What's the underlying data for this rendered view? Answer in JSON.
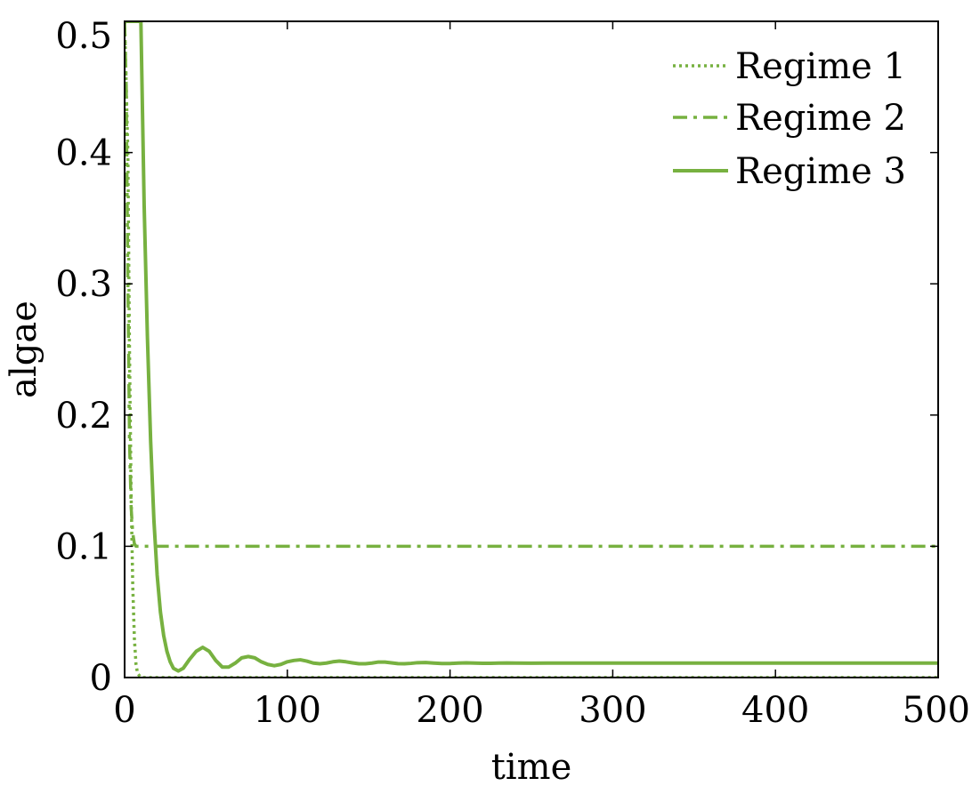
{
  "chart_data": {
    "type": "line",
    "title": "",
    "xlabel": "time",
    "ylabel": "algae",
    "xlim": [
      0,
      500
    ],
    "ylim": [
      0,
      0.5
    ],
    "xticks": [
      "0",
      "100",
      "200",
      "300",
      "400",
      "500"
    ],
    "yticks": [
      "0",
      "0.1",
      "0.2",
      "0.3",
      "0.4",
      "0.5"
    ],
    "grid": false,
    "legend_position": "top-right",
    "color": "#77b140",
    "series": [
      {
        "name": "Regime 1",
        "style": "dotted",
        "x": [
          0,
          2,
          3,
          4,
          5,
          6,
          7,
          8,
          10,
          500
        ],
        "y": [
          0.5,
          0.4,
          0.25,
          0.14,
          0.07,
          0.03,
          0.01,
          0.003,
          0.0,
          0.0
        ]
      },
      {
        "name": "Regime 2",
        "style": "dashdot",
        "x": [
          0,
          1,
          2,
          3,
          4,
          5,
          6,
          7,
          500
        ],
        "y": [
          0.5,
          0.45,
          0.3,
          0.18,
          0.13,
          0.11,
          0.102,
          0.1,
          0.1
        ]
      },
      {
        "name": "Regime 3",
        "style": "solid",
        "x": [
          0,
          10,
          12,
          14,
          16,
          18,
          20,
          22,
          24,
          26,
          28,
          30,
          33,
          36,
          40,
          44,
          48,
          52,
          56,
          60,
          64,
          68,
          72,
          76,
          80,
          84,
          88,
          92,
          96,
          100,
          104,
          108,
          112,
          116,
          120,
          124,
          128,
          132,
          136,
          140,
          144,
          148,
          152,
          156,
          160,
          164,
          168,
          172,
          176,
          180,
          185,
          190,
          195,
          200,
          205,
          210,
          215,
          220,
          225,
          230,
          235,
          240,
          250,
          260,
          270,
          280,
          300,
          350,
          400,
          450,
          500
        ],
        "y": [
          0.5,
          0.5,
          0.36,
          0.26,
          0.18,
          0.12,
          0.078,
          0.05,
          0.032,
          0.02,
          0.012,
          0.007,
          0.005,
          0.007,
          0.014,
          0.02,
          0.023,
          0.02,
          0.013,
          0.008,
          0.008,
          0.011,
          0.015,
          0.016,
          0.015,
          0.012,
          0.01,
          0.009,
          0.01,
          0.012,
          0.013,
          0.0135,
          0.0125,
          0.011,
          0.0105,
          0.011,
          0.012,
          0.0125,
          0.012,
          0.0112,
          0.0105,
          0.0105,
          0.011,
          0.0118,
          0.0118,
          0.0112,
          0.0106,
          0.0105,
          0.0108,
          0.0113,
          0.0114,
          0.011,
          0.0107,
          0.0107,
          0.011,
          0.0112,
          0.011,
          0.0108,
          0.0108,
          0.011,
          0.0111,
          0.011,
          0.0109,
          0.011,
          0.011,
          0.011,
          0.011,
          0.011,
          0.011,
          0.011,
          0.011
        ]
      }
    ]
  }
}
